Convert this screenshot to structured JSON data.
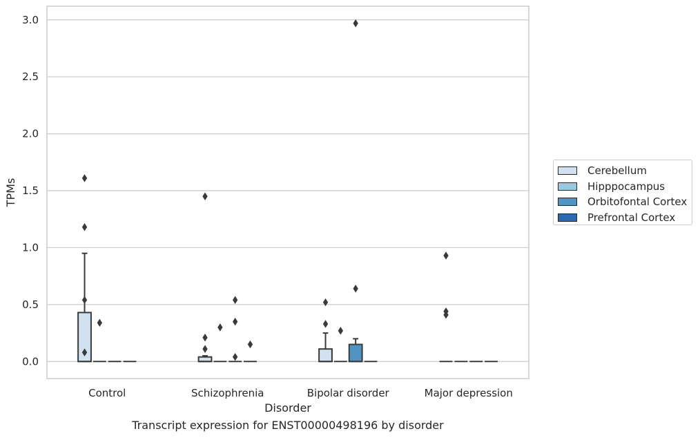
{
  "chart_data": {
    "type": "boxplot",
    "xlabel": "Disorder",
    "ylabel": "TPMs",
    "caption": "Transcript expression for ENST00000498196 by disorder",
    "ylim": [
      -0.15,
      3.12
    ],
    "yticks": [
      0.0,
      0.5,
      1.0,
      1.5,
      2.0,
      2.5,
      3.0
    ],
    "ytick_labels": [
      "0.0",
      "0.5",
      "1.0",
      "1.5",
      "2.0",
      "2.5",
      "3.0"
    ],
    "grid": "horizontal",
    "legend_position": "right",
    "categories": [
      "Control",
      "Schizophrenia",
      "Bipolar disorder",
      "Major depression"
    ],
    "series": [
      {
        "name": "Cerebellum",
        "color": "#d2e1f0",
        "boxes": [
          {
            "category": "Control",
            "q1": 0.0,
            "median": 0.0,
            "q3": 0.43,
            "whisker_low": 0.0,
            "whisker_high": 0.95,
            "outliers": [
              1.61,
              1.18,
              0.54,
              0.08
            ]
          },
          {
            "category": "Schizophrenia",
            "q1": 0.0,
            "median": 0.0,
            "q3": 0.04,
            "whisker_low": 0.0,
            "whisker_high": 0.05,
            "outliers": [
              1.45,
              0.21,
              0.11
            ]
          },
          {
            "category": "Bipolar disorder",
            "q1": 0.0,
            "median": 0.0,
            "q3": 0.11,
            "whisker_low": 0.0,
            "whisker_high": 0.25,
            "outliers": [
              0.52,
              0.33
            ]
          },
          {
            "category": "Major depression",
            "q1": 0.0,
            "median": 0.0,
            "q3": 0.0,
            "whisker_low": 0.0,
            "whisker_high": 0.0,
            "outliers": [
              0.93,
              0.44,
              0.41
            ]
          }
        ]
      },
      {
        "name": "Hipppocampus",
        "color": "#9ac8e0",
        "boxes": [
          {
            "category": "Control",
            "q1": 0.0,
            "median": 0.0,
            "q3": 0.0,
            "whisker_low": 0.0,
            "whisker_high": 0.0,
            "outliers": [
              0.34
            ]
          },
          {
            "category": "Schizophrenia",
            "q1": 0.0,
            "median": 0.0,
            "q3": 0.0,
            "whisker_low": 0.0,
            "whisker_high": 0.0,
            "outliers": [
              0.3
            ]
          },
          {
            "category": "Bipolar disorder",
            "q1": 0.0,
            "median": 0.0,
            "q3": 0.0,
            "whisker_low": 0.0,
            "whisker_high": 0.0,
            "outliers": [
              0.27
            ]
          },
          {
            "category": "Major depression",
            "q1": 0.0,
            "median": 0.0,
            "q3": 0.0,
            "whisker_low": 0.0,
            "whisker_high": 0.0,
            "outliers": []
          }
        ]
      },
      {
        "name": "Orbitofontal Cortex",
        "color": "#5094c4",
        "boxes": [
          {
            "category": "Control",
            "q1": 0.0,
            "median": 0.0,
            "q3": 0.0,
            "whisker_low": 0.0,
            "whisker_high": 0.0,
            "outliers": []
          },
          {
            "category": "Schizophrenia",
            "q1": 0.0,
            "median": 0.0,
            "q3": 0.0,
            "whisker_low": 0.0,
            "whisker_high": 0.0,
            "outliers": [
              0.54,
              0.35,
              0.04
            ]
          },
          {
            "category": "Bipolar disorder",
            "q1": 0.0,
            "median": 0.0,
            "q3": 0.15,
            "whisker_low": 0.0,
            "whisker_high": 0.2,
            "outliers": [
              2.97,
              0.64
            ]
          },
          {
            "category": "Major depression",
            "q1": 0.0,
            "median": 0.0,
            "q3": 0.0,
            "whisker_low": 0.0,
            "whisker_high": 0.0,
            "outliers": []
          }
        ]
      },
      {
        "name": "Prefrontal Cortex",
        "color": "#2a6aad",
        "boxes": [
          {
            "category": "Control",
            "q1": 0.0,
            "median": 0.0,
            "q3": 0.0,
            "whisker_low": 0.0,
            "whisker_high": 0.0,
            "outliers": []
          },
          {
            "category": "Schizophrenia",
            "q1": 0.0,
            "median": 0.0,
            "q3": 0.0,
            "whisker_low": 0.0,
            "whisker_high": 0.0,
            "outliers": [
              0.15
            ]
          },
          {
            "category": "Bipolar disorder",
            "q1": 0.0,
            "median": 0.0,
            "q3": 0.0,
            "whisker_low": 0.0,
            "whisker_high": 0.0,
            "outliers": []
          },
          {
            "category": "Major depression",
            "q1": 0.0,
            "median": 0.0,
            "q3": 0.0,
            "whisker_low": 0.0,
            "whisker_high": 0.0,
            "outliers": []
          }
        ]
      }
    ]
  }
}
